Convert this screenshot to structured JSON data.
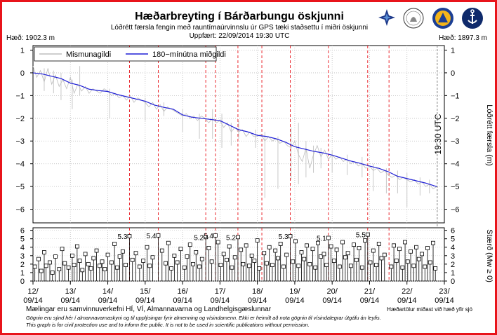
{
  "chart_data": [
    {
      "type": "line",
      "title": "Hæðarbreyting í Bárðarbungu öskjunni",
      "subtitle": "Lóðrétt færsla fengin með rauntímaúrvinnslu úr GPS tæki staðsettu í miðri öskjunni",
      "updated": "Uppfært: 22/09/2014 19:30 UTC",
      "left_height_label": "Hæð: 1902.3 m",
      "right_height_label": "Hæð: 1897.3 m",
      "ylabel": "Lóðrétt færsla (m)",
      "ylim": [
        -6.6,
        1.2
      ],
      "yticks": [
        "1",
        "0",
        "−1",
        "−2",
        "−3",
        "−4",
        "−5",
        "−6"
      ],
      "ytick_values": [
        1,
        0,
        -1,
        -2,
        -3,
        -4,
        -5,
        -6
      ],
      "xlim_days": [
        12.0,
        23.0
      ],
      "legend": {
        "raw": "Mismunagildi",
        "smooth": "180−mínútna miðgildi",
        "placement": "top-left"
      },
      "now_label": "19:30 UTC",
      "now_day": 22.81,
      "series": [
        {
          "name": "180−mínútna miðgildi",
          "color": "#1f1fd6",
          "x": [
            12.0,
            12.25,
            12.5,
            12.75,
            13.0,
            13.25,
            13.5,
            13.75,
            14.0,
            14.25,
            14.5,
            14.75,
            15.0,
            15.25,
            15.5,
            15.75,
            16.0,
            16.25,
            16.5,
            16.75,
            17.0,
            17.25,
            17.5,
            17.75,
            18.0,
            18.25,
            18.5,
            18.75,
            19.0,
            19.25,
            19.5,
            19.75,
            20.0,
            20.25,
            20.5,
            20.75,
            21.0,
            21.25,
            21.5,
            21.75,
            22.0,
            22.25,
            22.5,
            22.75,
            22.81
          ],
          "y": [
            0.0,
            -0.05,
            -0.15,
            -0.25,
            -0.45,
            -0.55,
            -0.72,
            -0.78,
            -0.82,
            -0.95,
            -1.05,
            -1.15,
            -1.25,
            -1.42,
            -1.52,
            -1.6,
            -1.85,
            -1.95,
            -2.0,
            -2.05,
            -2.1,
            -2.3,
            -2.5,
            -2.6,
            -2.75,
            -2.8,
            -2.9,
            -3.05,
            -3.25,
            -3.35,
            -3.45,
            -3.52,
            -3.62,
            -3.75,
            -3.88,
            -3.98,
            -4.1,
            -4.2,
            -4.35,
            -4.55,
            -4.65,
            -4.75,
            -4.85,
            -4.98,
            -5.0
          ]
        },
        {
          "name": "Mismunagildi",
          "color": "#bdbdbd",
          "x": [
            12.0,
            12.1,
            12.2,
            12.3,
            12.4,
            12.5,
            12.6,
            12.7,
            12.8,
            12.9,
            13.0,
            13.1,
            13.2,
            13.3,
            13.4,
            13.5,
            13.6,
            13.7,
            13.8,
            13.9,
            14.0,
            14.1,
            14.2,
            14.3,
            14.4,
            14.5,
            14.6,
            14.7,
            14.8,
            14.9,
            15.0,
            15.1,
            15.2,
            15.3,
            15.4,
            15.5,
            15.6,
            15.7,
            15.8,
            15.9,
            16.0,
            16.1,
            16.2,
            16.3,
            16.4,
            16.5,
            16.6,
            16.7,
            16.8,
            16.9,
            17.0,
            17.1,
            17.2,
            17.3,
            17.4,
            17.5,
            17.6,
            17.7,
            17.8,
            17.9,
            18.0,
            18.1,
            18.2,
            18.3,
            18.4,
            18.5,
            18.6,
            18.7,
            18.8,
            18.9,
            19.0,
            19.1,
            19.2,
            19.3,
            19.4,
            19.5,
            19.6,
            19.7,
            19.8,
            19.9,
            20.0,
            20.1,
            20.2,
            20.3,
            20.4,
            20.5,
            20.6,
            20.7,
            20.8,
            20.9,
            21.0,
            21.1,
            21.2,
            21.3,
            21.4,
            21.5,
            21.6,
            21.7,
            21.8,
            21.9,
            22.0,
            22.1,
            22.2,
            22.3,
            22.4,
            22.5,
            22.6,
            22.7,
            22.8
          ],
          "y": [
            0.3,
            -0.2,
            0.1,
            -0.4,
            0.2,
            -0.5,
            -0.1,
            -0.6,
            -0.3,
            -0.7,
            -0.2,
            -0.9,
            -0.5,
            -0.8,
            -0.6,
            -0.9,
            -0.7,
            -0.8,
            -0.9,
            -0.7,
            -0.8,
            -1.0,
            -0.9,
            -1.1,
            -1.0,
            -1.2,
            -1.0,
            -1.3,
            -1.1,
            -1.2,
            -1.3,
            -1.5,
            -1.3,
            -1.6,
            -1.4,
            -1.7,
            -1.5,
            -1.6,
            -1.7,
            -1.8,
            -1.9,
            -1.8,
            -2.0,
            -1.9,
            -2.1,
            -1.9,
            -2.0,
            -2.2,
            -2.0,
            -2.2,
            -2.1,
            -2.4,
            -2.2,
            -2.6,
            -2.4,
            -2.6,
            -2.5,
            -2.8,
            -2.6,
            -2.8,
            -2.8,
            -2.7,
            -3.0,
            -2.8,
            -3.0,
            -2.9,
            -3.1,
            -3.0,
            -3.2,
            -3.3,
            -3.0,
            -3.6,
            -3.9,
            -3.3,
            -4.2,
            -3.6,
            -3.2,
            -3.7,
            -3.4,
            -3.8,
            -3.6,
            -3.8,
            -3.7,
            -3.9,
            -3.8,
            -4.0,
            -3.9,
            -4.1,
            -4.0,
            -4.2,
            -4.1,
            -4.3,
            -4.2,
            -4.4,
            -4.3,
            -4.5,
            -4.6,
            -4.5,
            -4.7,
            -4.6,
            -4.7,
            -4.8,
            -4.7,
            -4.9,
            -4.8,
            -5.0,
            -4.9,
            -5.1,
            -5.0
          ]
        }
      ],
      "spikes": [
        {
          "x": 12.3,
          "lo": -0.8,
          "hi": 0.2
        },
        {
          "x": 12.55,
          "lo": -0.9,
          "hi": 0.1
        },
        {
          "x": 12.75,
          "lo": -1.2,
          "hi": 0.0
        },
        {
          "x": 13.05,
          "lo": -1.6,
          "hi": -0.3
        },
        {
          "x": 13.25,
          "lo": -1.0,
          "hi": 0.3
        },
        {
          "x": 14.05,
          "lo": -2.0,
          "hi": -0.7
        },
        {
          "x": 15.0,
          "lo": -2.1,
          "hi": -1.1
        },
        {
          "x": 15.5,
          "lo": -1.9,
          "hi": -1.3
        },
        {
          "x": 16.0,
          "lo": -2.6,
          "hi": -1.6
        },
        {
          "x": 16.45,
          "lo": -2.9,
          "hi": -1.8
        },
        {
          "x": 16.8,
          "lo": -2.9,
          "hi": -1.6
        },
        {
          "x": 17.05,
          "lo": -3.3,
          "hi": -1.8
        },
        {
          "x": 17.3,
          "lo": -3.2,
          "hi": -2.2
        },
        {
          "x": 17.5,
          "lo": -2.9,
          "hi": -2.1
        },
        {
          "x": 17.95,
          "lo": -3.3,
          "hi": -2.5
        },
        {
          "x": 18.2,
          "lo": -5.5,
          "hi": -2.6
        },
        {
          "x": 18.55,
          "lo": -5.1,
          "hi": -2.8
        },
        {
          "x": 18.9,
          "lo": -4.7,
          "hi": -2.4
        },
        {
          "x": 19.1,
          "lo": -4.9,
          "hi": -2.2
        },
        {
          "x": 19.3,
          "lo": -4.6,
          "hi": -3.0
        },
        {
          "x": 19.5,
          "lo": -4.4,
          "hi": -3.2
        },
        {
          "x": 19.7,
          "lo": -4.2,
          "hi": -3.3
        },
        {
          "x": 20.0,
          "lo": -4.4,
          "hi": -3.4
        },
        {
          "x": 20.4,
          "lo": -4.5,
          "hi": -3.6
        },
        {
          "x": 20.8,
          "lo": -4.6,
          "hi": -3.7
        },
        {
          "x": 21.1,
          "lo": -5.2,
          "hi": -4.0
        },
        {
          "x": 21.45,
          "lo": -5.3,
          "hi": -4.2
        },
        {
          "x": 21.75,
          "lo": -5.3,
          "hi": -4.3
        },
        {
          "x": 22.0,
          "lo": -5.9,
          "hi": -4.4
        },
        {
          "x": 22.35,
          "lo": -5.4,
          "hi": -4.6
        },
        {
          "x": 22.6,
          "lo": -5.3,
          "hi": -4.7
        }
      ],
      "event_lines_days": [
        14.58,
        15.35,
        16.62,
        16.88,
        17.48,
        18.12,
        18.88,
        19.9,
        20.95,
        21.52
      ]
    },
    {
      "type": "bar",
      "name": "earthquakes",
      "ylabel": "Stærð (Mw ≥ 0)",
      "ylim": [
        0,
        6.3
      ],
      "yticks": [
        "0",
        "1",
        "2",
        "3",
        "4",
        "5",
        "6"
      ],
      "ytick_values": [
        0,
        1,
        2,
        3,
        4,
        5,
        6
      ],
      "xlim_days": [
        12.0,
        23.0
      ],
      "xticks": [
        "12/\n09/14",
        "13/\n09/14",
        "14/\n09/14",
        "15/\n09/14",
        "16/\n09/14",
        "17/\n09/14",
        "18/\n09/14",
        "19/\n09/14",
        "20/\n09/14",
        "21/\n09/14",
        "22/\n09/14",
        "23/\n09/14"
      ],
      "xtick_top": [
        "12/",
        "13/",
        "14/",
        "15/",
        "16/",
        "17/",
        "18/",
        "19/",
        "20/",
        "21/",
        "22/",
        "23/"
      ],
      "xtick_bottom": [
        "09/14",
        "09/14",
        "09/14",
        "09/14",
        "09/14",
        "09/14",
        "09/14",
        "09/14",
        "09/14",
        "09/14",
        "09/14",
        "09/14"
      ],
      "large_events": [
        {
          "x": 14.58,
          "mag": 5.3,
          "label": "5.3"
        },
        {
          "x": 15.35,
          "mag": 5.4,
          "label": "5.4"
        },
        {
          "x": 16.62,
          "mag": 5.2,
          "label": "5.2"
        },
        {
          "x": 16.88,
          "mag": 5.4,
          "label": "5.4"
        },
        {
          "x": 17.48,
          "mag": 5.2,
          "label": "5.2"
        },
        {
          "x": 18.88,
          "mag": 5.3,
          "label": "5.3"
        },
        {
          "x": 19.9,
          "mag": 5.1,
          "label": "5.1"
        },
        {
          "x": 20.95,
          "mag": 5.5,
          "label": "5.5"
        }
      ],
      "quakes": [
        [
          12.05,
          1.7
        ],
        [
          12.15,
          2.6
        ],
        [
          12.22,
          1.2
        ],
        [
          12.3,
          3.4
        ],
        [
          12.35,
          1.8
        ],
        [
          12.45,
          2.2
        ],
        [
          12.52,
          1.0
        ],
        [
          12.6,
          2.9
        ],
        [
          12.7,
          1.4
        ],
        [
          12.78,
          3.8
        ],
        [
          12.85,
          2.1
        ],
        [
          12.95,
          1.6
        ],
        [
          13.05,
          3.0
        ],
        [
          13.1,
          1.9
        ],
        [
          13.18,
          4.1
        ],
        [
          13.25,
          2.4
        ],
        [
          13.32,
          1.3
        ],
        [
          13.4,
          3.2
        ],
        [
          13.48,
          2.0
        ],
        [
          13.55,
          1.5
        ],
        [
          13.62,
          2.7
        ],
        [
          13.7,
          3.6
        ],
        [
          13.78,
          1.8
        ],
        [
          13.85,
          2.3
        ],
        [
          13.92,
          1.4
        ],
        [
          14.0,
          3.1
        ],
        [
          14.1,
          2.2
        ],
        [
          14.18,
          4.4
        ],
        [
          14.25,
          1.6
        ],
        [
          14.32,
          2.9
        ],
        [
          14.4,
          3.5
        ],
        [
          14.48,
          1.9
        ],
        [
          14.66,
          2.5
        ],
        [
          14.75,
          3.3
        ],
        [
          14.85,
          1.7
        ],
        [
          14.95,
          2.4
        ],
        [
          15.05,
          4.0
        ],
        [
          15.12,
          1.8
        ],
        [
          15.2,
          2.8
        ],
        [
          15.45,
          3.6
        ],
        [
          15.55,
          2.1
        ],
        [
          15.62,
          4.5
        ],
        [
          15.7,
          1.5
        ],
        [
          15.78,
          3.0
        ],
        [
          15.86,
          2.2
        ],
        [
          15.95,
          3.8
        ],
        [
          16.05,
          1.6
        ],
        [
          16.12,
          2.9
        ],
        [
          16.2,
          4.3
        ],
        [
          16.28,
          2.0
        ],
        [
          16.36,
          3.4
        ],
        [
          16.45,
          1.7
        ],
        [
          16.52,
          2.6
        ],
        [
          16.7,
          3.9
        ],
        [
          16.78,
          2.3
        ],
        [
          16.95,
          4.6
        ],
        [
          17.02,
          1.9
        ],
        [
          17.1,
          3.2
        ],
        [
          17.18,
          2.5
        ],
        [
          17.25,
          4.1
        ],
        [
          17.32,
          1.6
        ],
        [
          17.4,
          2.8
        ],
        [
          17.56,
          3.7
        ],
        [
          17.62,
          2.0
        ],
        [
          17.7,
          4.2
        ],
        [
          17.78,
          1.8
        ],
        [
          17.85,
          3.0
        ],
        [
          17.92,
          2.4
        ],
        [
          18.0,
          4.8
        ],
        [
          18.05,
          1.5
        ],
        [
          18.18,
          3.3
        ],
        [
          18.25,
          2.1
        ],
        [
          18.32,
          4.0
        ],
        [
          18.4,
          1.9
        ],
        [
          18.48,
          3.6
        ],
        [
          18.55,
          2.7
        ],
        [
          18.62,
          4.4
        ],
        [
          18.7,
          1.7
        ],
        [
          18.78,
          3.1
        ],
        [
          18.95,
          2.3
        ],
        [
          19.02,
          4.7
        ],
        [
          19.1,
          1.8
        ],
        [
          19.18,
          3.4
        ],
        [
          19.25,
          2.6
        ],
        [
          19.32,
          4.2
        ],
        [
          19.4,
          2.0
        ],
        [
          19.48,
          3.8
        ],
        [
          19.55,
          1.6
        ],
        [
          19.62,
          4.5
        ],
        [
          19.7,
          2.9
        ],
        [
          19.78,
          3.2
        ],
        [
          19.85,
          1.9
        ],
        [
          19.97,
          4.1
        ],
        [
          20.05,
          2.4
        ],
        [
          20.12,
          3.7
        ],
        [
          20.2,
          1.7
        ],
        [
          20.28,
          4.6
        ],
        [
          20.35,
          2.8
        ],
        [
          20.42,
          3.3
        ],
        [
          20.5,
          1.8
        ],
        [
          20.58,
          4.3
        ],
        [
          20.65,
          2.5
        ],
        [
          20.72,
          3.9
        ],
        [
          20.8,
          1.6
        ],
        [
          20.88,
          4.8
        ],
        [
          21.02,
          2.2
        ],
        [
          21.1,
          3.6
        ],
        [
          21.18,
          1.9
        ],
        [
          21.25,
          4.4
        ],
        [
          21.32,
          2.7
        ],
        [
          21.4,
          3.1
        ],
        [
          21.58,
          1.7
        ],
        [
          21.65,
          4.2
        ],
        [
          21.72,
          2.4
        ],
        [
          21.8,
          3.8
        ],
        [
          21.88,
          1.6
        ],
        [
          21.95,
          4.6
        ],
        [
          22.02,
          2.3
        ],
        [
          22.1,
          3.5
        ],
        [
          22.18,
          1.8
        ],
        [
          22.25,
          4.0
        ],
        [
          22.32,
          2.6
        ],
        [
          22.4,
          3.2
        ],
        [
          22.48,
          1.7
        ],
        [
          22.55,
          3.9
        ],
        [
          22.62,
          2.2
        ],
        [
          22.7,
          4.5
        ],
        [
          22.76,
          1.5
        ]
      ]
    }
  ],
  "footer": {
    "left": "Mælingar eru samvinnuverkefni HÍ, VÍ, Almannavarna og Landhelgisgæslunnar",
    "right": "Hæðartölur miðast við hæð yfir sjó",
    "note1": "Gögnin eru sýnd hér í almannavarnaskyni og til upplýsingar fyrir almenning og vísindamenn. Ekki er heimilt að nota gögnin til vísindalegrar útgáfu án leyfis.",
    "note2": "This graph is for civil protection use and to inform the public. It is not to be used in scientific publications without permission."
  },
  "colors": {
    "frame": "#e8141b",
    "median": "#1f1fd6",
    "raw": "#bdbdbd",
    "event_line": "#e8141b",
    "event_label": "#e8141b"
  },
  "logos": [
    "vedurstofa-logo",
    "haskoli-islands-seal",
    "almannavarnir-logo",
    "landhelgisgaesla-logo"
  ]
}
